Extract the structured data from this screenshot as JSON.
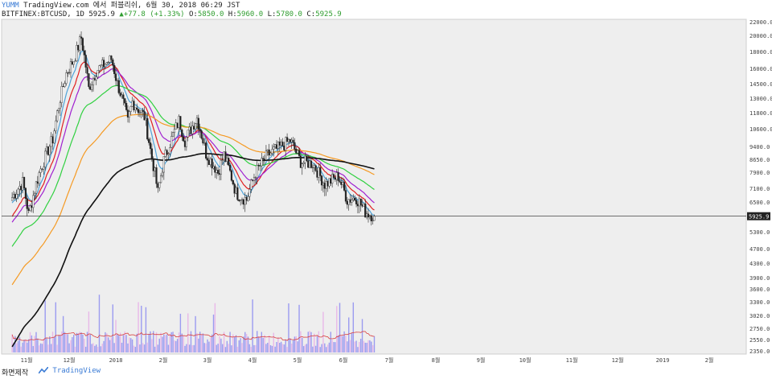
{
  "header": {
    "user": "YUMM",
    "published": "TradingView.com 에서 퍼블리쉬, 6월 30, 2018 06:29 JST",
    "symbol": "BITFINEX:BTCUSD, 1D",
    "last": "5925.9",
    "change_arrow": "▲",
    "change": "+77.8 (+1.33%)",
    "o_label": "O:",
    "o": "5850.0",
    "h_label": "H:",
    "h": "5960.0",
    "l_label": "L:",
    "l": "5780.0",
    "c_label": "C:",
    "c": "5925.9"
  },
  "footer": {
    "left": "화면제작",
    "brand": "TradingView"
  },
  "colors": {
    "background": "#eeeeee",
    "candle": "#222222",
    "volume": "#9b9bf0",
    "volume_alt": "#e8b8e8",
    "vol_ma": "#d94040",
    "ema_blue": "#4fa3d9",
    "ema_red": "#e02020",
    "ema_purple": "#a020d0",
    "ema_green": "#30d040",
    "ema_orange": "#f59a23",
    "ema_black": "#111111",
    "last_line": "#222222"
  },
  "chart_data": {
    "type": "candlestick",
    "y_ticks": [
      "22000.0",
      "20000.0",
      "18000.0",
      "16000.0",
      "14500.0",
      "13000.0",
      "11800.0",
      "10600.0",
      "9400.0",
      "8650.0",
      "7900.0",
      "7100.0",
      "6500.0",
      "5300.0",
      "4700.0",
      "4300.0",
      "3900.0",
      "3600.0",
      "3300.0",
      "3020.0",
      "2750.0",
      "2550.0",
      "2350.0"
    ],
    "x_ticks": [
      "11월",
      "12월",
      "2018",
      "2월",
      "3월",
      "4월",
      "5월",
      "6월",
      "7월",
      "8월",
      "9월",
      "10월",
      "11월",
      "12월",
      "2019",
      "2월"
    ],
    "last_price_label": "5925.9",
    "close_path": [
      {
        "date": "2017-11-01",
        "close": 6700
      },
      {
        "date": "2017-11-08",
        "close": 7400
      },
      {
        "date": "2017-11-12",
        "close": 6000
      },
      {
        "date": "2017-11-20",
        "close": 8100
      },
      {
        "date": "2017-11-28",
        "close": 9900
      },
      {
        "date": "2017-12-07",
        "close": 15500
      },
      {
        "date": "2017-12-12",
        "close": 17000
      },
      {
        "date": "2017-12-17",
        "close": 19700
      },
      {
        "date": "2017-12-22",
        "close": 14000
      },
      {
        "date": "2017-12-27",
        "close": 15800
      },
      {
        "date": "2018-01-06",
        "close": 17100
      },
      {
        "date": "2018-01-10",
        "close": 14500
      },
      {
        "date": "2018-01-17",
        "close": 11100
      },
      {
        "date": "2018-01-20",
        "close": 12700
      },
      {
        "date": "2018-01-28",
        "close": 11500
      },
      {
        "date": "2018-02-01",
        "close": 9200
      },
      {
        "date": "2018-02-06",
        "close": 6900
      },
      {
        "date": "2018-02-10",
        "close": 8600
      },
      {
        "date": "2018-02-20",
        "close": 11200
      },
      {
        "date": "2018-02-24",
        "close": 9800
      },
      {
        "date": "2018-03-04",
        "close": 11400
      },
      {
        "date": "2018-03-10",
        "close": 9000
      },
      {
        "date": "2018-03-18",
        "close": 7900
      },
      {
        "date": "2018-03-22",
        "close": 8900
      },
      {
        "date": "2018-03-30",
        "close": 6900
      },
      {
        "date": "2018-04-06",
        "close": 6600
      },
      {
        "date": "2018-04-12",
        "close": 7900
      },
      {
        "date": "2018-04-20",
        "close": 8900
      },
      {
        "date": "2018-04-27",
        "close": 9300
      },
      {
        "date": "2018-05-05",
        "close": 9800
      },
      {
        "date": "2018-05-12",
        "close": 8500
      },
      {
        "date": "2018-05-20",
        "close": 8400
      },
      {
        "date": "2018-05-28",
        "close": 7300
      },
      {
        "date": "2018-06-06",
        "close": 7700
      },
      {
        "date": "2018-06-12",
        "close": 6600
      },
      {
        "date": "2018-06-18",
        "close": 6700
      },
      {
        "date": "2018-06-24",
        "close": 6100
      },
      {
        "date": "2018-06-30",
        "close": 5925.9
      }
    ],
    "moving_averages": [
      {
        "color": "ema_blue",
        "period": 8
      },
      {
        "color": "ema_red",
        "period": 15
      },
      {
        "color": "ema_purple",
        "period": 25
      },
      {
        "color": "ema_green",
        "period": 50
      },
      {
        "color": "ema_orange",
        "period": 100
      },
      {
        "color": "ema_black",
        "period": 200
      }
    ]
  }
}
